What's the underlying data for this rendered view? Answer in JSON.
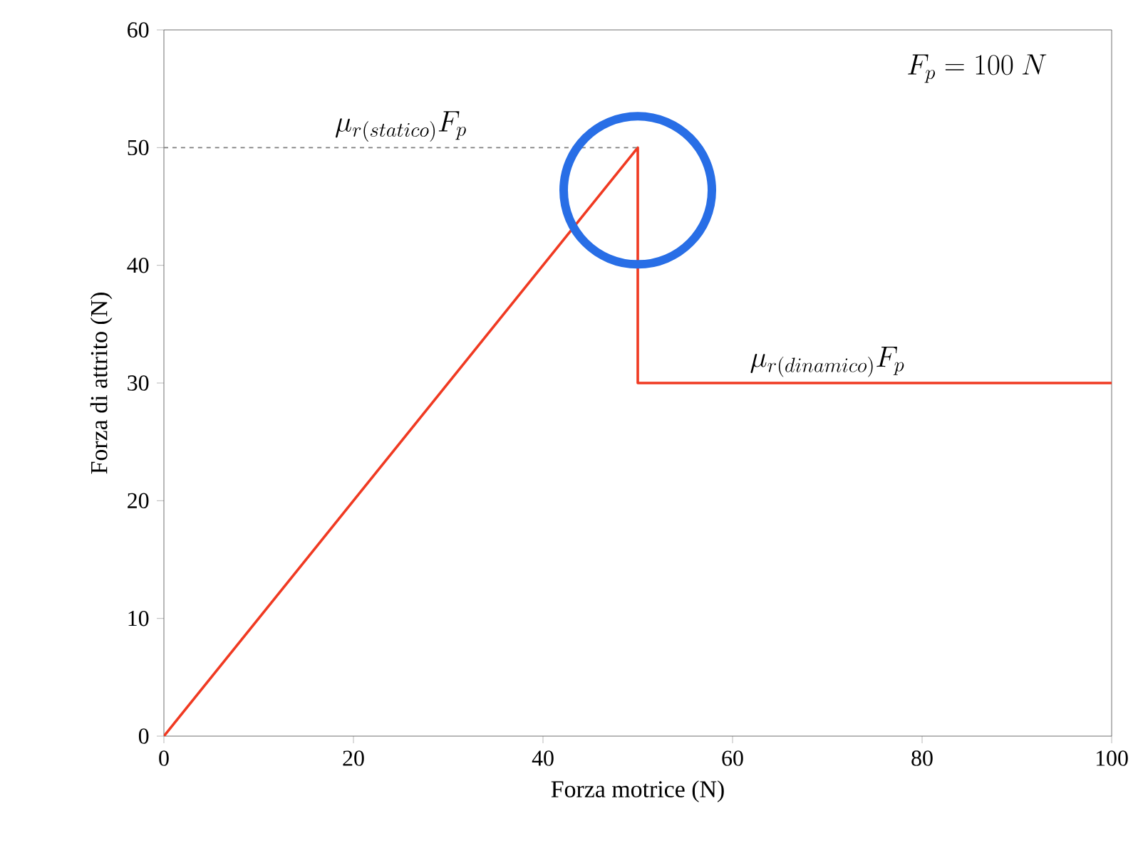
{
  "chart_data": {
    "type": "line",
    "xlabel": "Forza motrice (N)",
    "ylabel": "Forza di attrito (N)",
    "series": [
      {
        "x": [
          0,
          50,
          50,
          100
        ],
        "values": [
          0,
          50,
          30,
          30
        ],
        "color": "#f03a22"
      }
    ],
    "xlim": [
      0,
      100
    ],
    "ylim": [
      0,
      60
    ],
    "xticks": [
      0,
      20,
      40,
      60,
      80,
      100
    ],
    "yticks": [
      0,
      10,
      20,
      30,
      40,
      50,
      60
    ],
    "marker": "none",
    "line_style": "solid",
    "ref_lines": [
      {
        "axis": "y",
        "value": 50,
        "color": "#808080",
        "line_style": "dashed"
      }
    ],
    "annotations": [
      "F_{p} = 100\\ N",
      {
        "text": "\\mu_{r(statico)}F_{p}",
        "x": 25,
        "y": 50
      },
      {
        "text": "\\mu_{r(dinamico)}F_{p}",
        "x": 70,
        "y": 30
      }
    ]
  }
}
